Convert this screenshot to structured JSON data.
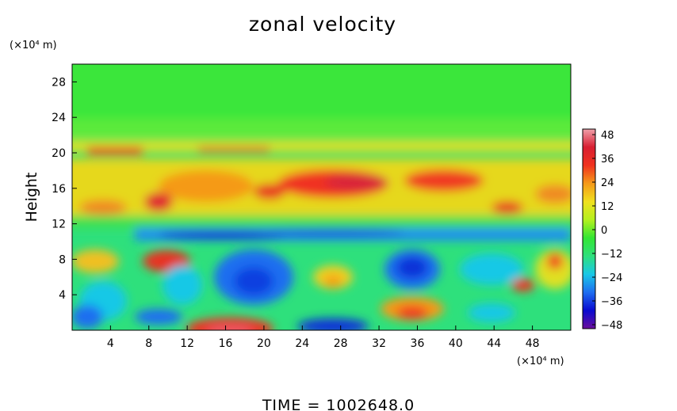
{
  "chart_data": {
    "type": "heatmap",
    "title": "zonal velocity",
    "ylabel": "Height",
    "xlabel": "",
    "x_unit": "(×10⁴ m)",
    "y_unit": "(×10⁴ m)",
    "xlim": [
      0,
      52
    ],
    "ylim": [
      0,
      30
    ],
    "x_ticks": [
      4,
      8,
      12,
      16,
      20,
      24,
      28,
      32,
      36,
      40,
      44,
      48
    ],
    "y_ticks": [
      4,
      8,
      12,
      16,
      20,
      24,
      28
    ],
    "colorbar": {
      "min": -48,
      "max": 48,
      "ticks": [
        48,
        36,
        24,
        12,
        0,
        -12,
        -24,
        -36,
        -48
      ],
      "colors": [
        "#6a0f9c",
        "#0a0ad0",
        "#1e6ef0",
        "#19c8e6",
        "#2ee07c",
        "#33e633",
        "#b4f01e",
        "#f0e01e",
        "#f59a19",
        "#f0321e",
        "#d81e32",
        "#f0a0aa"
      ]
    },
    "grid": false,
    "footer": "TIME  =  1002648.0"
  }
}
